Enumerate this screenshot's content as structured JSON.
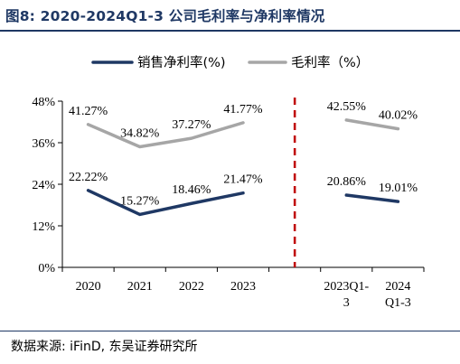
{
  "title": "图8:  2020-2024Q1-3 公司毛利率与净利率情况",
  "source": "数据来源: iFinD, 东吴证券研究所",
  "colors": {
    "title": "#1f3864",
    "net_margin": "#1f3864",
    "gross_margin": "#a6a6a6",
    "divider": "#c00000",
    "axis": "#000000"
  },
  "chart_data": {
    "type": "line",
    "x_labels": [
      {
        "lines": [
          "2020"
        ]
      },
      {
        "lines": [
          "2021"
        ]
      },
      {
        "lines": [
          "2022"
        ]
      },
      {
        "lines": [
          "2023"
        ]
      },
      {
        "lines": [
          ""
        ]
      },
      {
        "lines": [
          "2023Q1-",
          "3"
        ]
      },
      {
        "lines": [
          "2024",
          "Q1-3"
        ]
      }
    ],
    "ylim": [
      0,
      48
    ],
    "yticks": [
      "0%",
      "12%",
      "24%",
      "36%",
      "48%"
    ],
    "ytick_values": [
      0,
      12,
      24,
      36,
      48
    ],
    "legend_position": "top-center",
    "divider": {
      "between": [
        3,
        5
      ],
      "style": "dashed"
    },
    "series": [
      {
        "name": "销售净利率(%)",
        "color_key": "net_margin",
        "segments": [
          {
            "x": [
              0,
              1,
              2,
              3
            ],
            "values": [
              22.22,
              15.27,
              18.46,
              21.47
            ],
            "labels": [
              "22.22%",
              "15.27%",
              "18.46%",
              "21.47%"
            ]
          },
          {
            "x": [
              5,
              6
            ],
            "values": [
              20.86,
              19.01
            ],
            "labels": [
              "20.86%",
              "19.01%"
            ]
          }
        ]
      },
      {
        "name": "毛利率（%）",
        "color_key": "gross_margin",
        "segments": [
          {
            "x": [
              0,
              1,
              2,
              3
            ],
            "values": [
              41.27,
              34.82,
              37.27,
              41.77
            ],
            "labels": [
              "41.27%",
              "34.82%",
              "37.27%",
              "41.77%"
            ]
          },
          {
            "x": [
              5,
              6
            ],
            "values": [
              42.55,
              40.02
            ],
            "labels": [
              "42.55%",
              "40.02%"
            ]
          }
        ]
      }
    ]
  }
}
